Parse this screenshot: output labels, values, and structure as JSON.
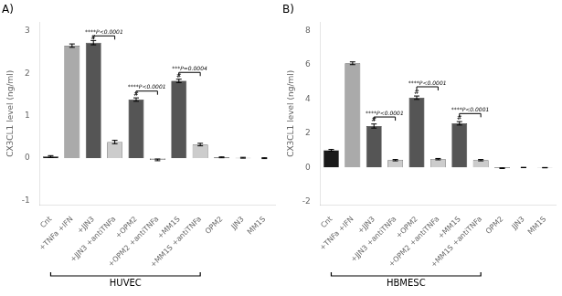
{
  "chart_data": [
    {
      "type": "bar",
      "title": "A)",
      "ylabel": "CX3CL1 level (ng/ml)",
      "categories": [
        "Cnt",
        "+TNFa +IFN",
        "+JJN3",
        "+JJN3 +antiTNFa",
        "+OPM2",
        "+OPM2 +antiTNFa",
        "+MM1S",
        "+MM1S +antiTNFa",
        "OPM2",
        "JJN3",
        "MM1S"
      ],
      "values": [
        0.04,
        2.65,
        2.72,
        0.38,
        1.38,
        -0.04,
        1.82,
        0.32,
        0.02,
        0.01,
        0.0
      ],
      "errors": [
        0.02,
        0.04,
        0.05,
        0.04,
        0.04,
        0.02,
        0.04,
        0.03,
        0.01,
        0.01,
        0.01
      ],
      "colors": [
        "#1a1a1a",
        "#aaaaaa",
        "#555555",
        "#cccccc",
        "#555555",
        "#cccccc",
        "#555555",
        "#cccccc",
        "#555555",
        "#555555",
        "#555555"
      ],
      "ylim": [
        -1.1,
        3.2
      ],
      "yticks": [
        -1,
        0,
        1,
        2,
        3
      ],
      "grid": false,
      "annotations": [
        {
          "text": "****P<0.0001",
          "from": "+JJN3",
          "to": "+JJN3 +antiTNFa",
          "y": 2.88
        },
        {
          "text": "****P<0.0001",
          "from": "+OPM2",
          "to": "+OPM2 +antiTNFa",
          "y": 1.58
        },
        {
          "text": "***P=0.0004",
          "from": "+MM1S",
          "to": "+MM1S +antiTNFa",
          "y": 2.02
        },
        {
          "text": "#",
          "at": "+JJN3",
          "y": 2.76
        },
        {
          "text": "#",
          "at": "+OPM2",
          "y": 1.42
        },
        {
          "text": "#",
          "at": "+MM1S",
          "y": 1.86
        }
      ],
      "group_label": {
        "text": "HUVEC",
        "from": "Cnt",
        "to": "+MM1S +antiTNFa"
      }
    },
    {
      "type": "bar",
      "title": "B)",
      "ylabel": "CX3CL1 level (ng/ml)",
      "categories": [
        "Cnt",
        "+TNFa +IFN",
        "+JJN3",
        "+JJN3 +antiTNFa",
        "+OPM2",
        "+OPM2 +antiTNFa",
        "+MM1S",
        "+MM1S +antiTNFa",
        "OPM2",
        "JJN3",
        "MM1S"
      ],
      "values": [
        1.0,
        6.1,
        2.42,
        0.42,
        4.08,
        0.48,
        2.58,
        0.42,
        -0.05,
        -0.01,
        -0.02
      ],
      "errors": [
        0.05,
        0.08,
        0.12,
        0.04,
        0.1,
        0.04,
        0.1,
        0.04,
        0.02,
        0.01,
        0.01
      ],
      "colors": [
        "#1a1a1a",
        "#aaaaaa",
        "#555555",
        "#cccccc",
        "#555555",
        "#cccccc",
        "#555555",
        "#cccccc",
        "#555555",
        "#555555",
        "#555555"
      ],
      "ylim": [
        -2.2,
        8.5
      ],
      "yticks": [
        -2,
        0,
        2,
        4,
        6,
        8
      ],
      "grid": false,
      "annotations": [
        {
          "text": "****P<0.0001",
          "from": "+JJN3",
          "to": "+JJN3 +antiTNFa",
          "y": 2.95
        },
        {
          "text": "****P<0.0001",
          "from": "+OPM2",
          "to": "+OPM2 +antiTNFa",
          "y": 4.72
        },
        {
          "text": "****P<0.0001",
          "from": "+MM1S",
          "to": "+MM1S +antiTNFa",
          "y": 3.15
        },
        {
          "text": "#",
          "at": "+JJN3",
          "y": 2.6
        },
        {
          "text": "#",
          "at": "+OPM2",
          "y": 4.22
        },
        {
          "text": "#",
          "at": "+MM1S",
          "y": 2.72
        }
      ],
      "group_label": {
        "text": "HBMESC",
        "from": "Cnt",
        "to": "+MM1S +antiTNFa"
      }
    }
  ]
}
